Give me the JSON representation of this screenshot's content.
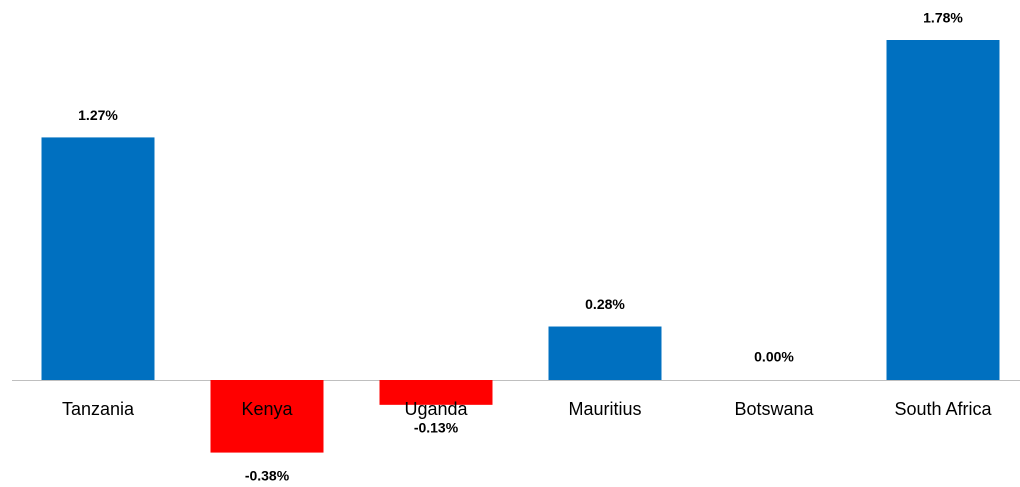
{
  "chart_data": {
    "type": "bar",
    "categories": [
      "Tanzania",
      "Kenya",
      "Uganda",
      "Mauritius",
      "Botswana",
      "South Africa"
    ],
    "values": [
      1.27,
      -0.38,
      -0.13,
      0.28,
      0.0,
      1.78
    ],
    "value_labels": [
      "1.27%",
      "-0.38%",
      "-0.13%",
      "0.28%",
      "0.00%",
      "1.78%"
    ],
    "colors": [
      "#0070c0",
      "#ff0000",
      "#ff0000",
      "#0070c0",
      "#0070c0",
      "#0070c0"
    ]
  }
}
